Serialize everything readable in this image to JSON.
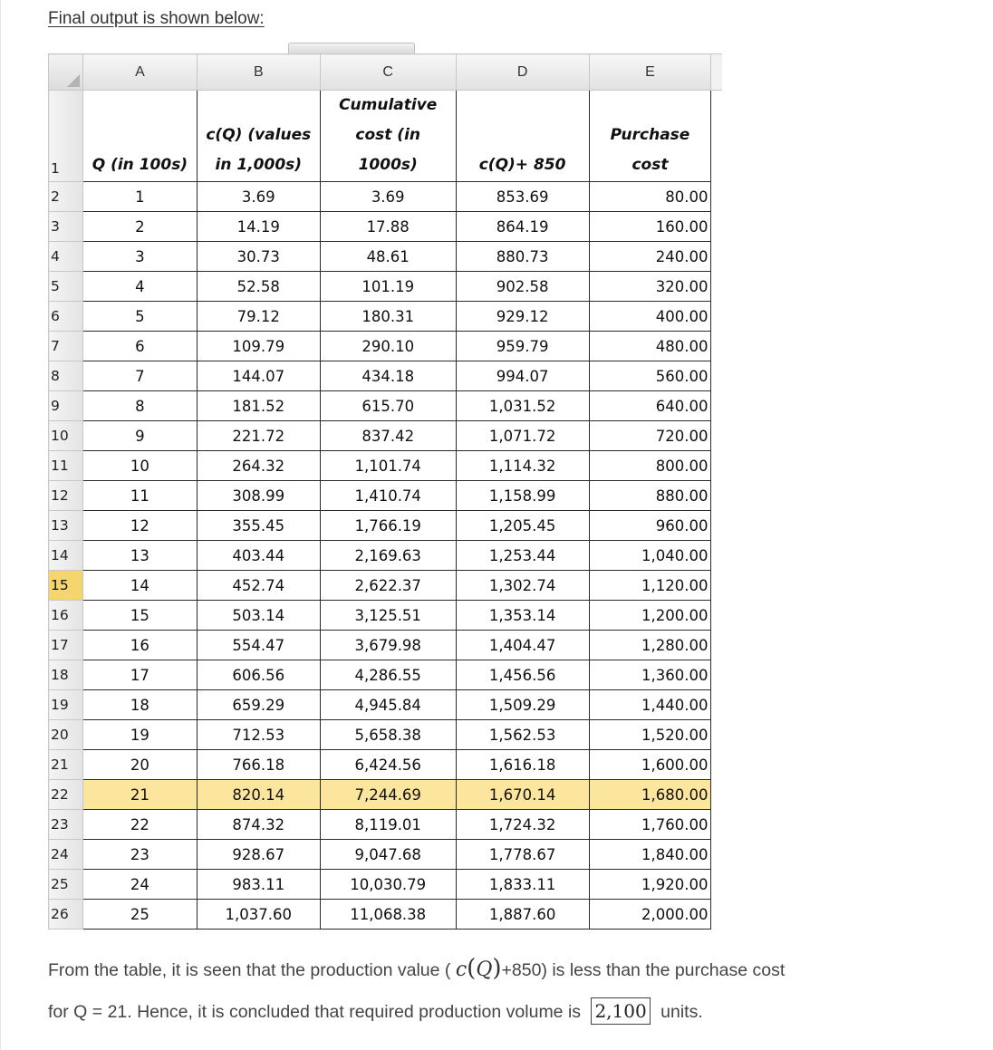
{
  "heading": "Final output is shown below:",
  "columns": [
    "A",
    "B",
    "C",
    "D",
    "E"
  ],
  "header_row": {
    "row_number": "1",
    "cells": [
      [
        "Q (in 100s)"
      ],
      [
        "c(Q) (values",
        "in 1,000s)"
      ],
      [
        "Cumulative",
        "cost (in",
        "1000s)"
      ],
      [
        "c(Q)+ 850"
      ],
      [
        "Purchase",
        "cost"
      ]
    ]
  },
  "rows": [
    {
      "n": "2",
      "q": "1",
      "cq": "3.69",
      "cum": "3.69",
      "plus": "853.69",
      "buy": "80.00"
    },
    {
      "n": "3",
      "q": "2",
      "cq": "14.19",
      "cum": "17.88",
      "plus": "864.19",
      "buy": "160.00"
    },
    {
      "n": "4",
      "q": "3",
      "cq": "30.73",
      "cum": "48.61",
      "plus": "880.73",
      "buy": "240.00"
    },
    {
      "n": "5",
      "q": "4",
      "cq": "52.58",
      "cum": "101.19",
      "plus": "902.58",
      "buy": "320.00"
    },
    {
      "n": "6",
      "q": "5",
      "cq": "79.12",
      "cum": "180.31",
      "plus": "929.12",
      "buy": "400.00"
    },
    {
      "n": "7",
      "q": "6",
      "cq": "109.79",
      "cum": "290.10",
      "plus": "959.79",
      "buy": "480.00"
    },
    {
      "n": "8",
      "q": "7",
      "cq": "144.07",
      "cum": "434.18",
      "plus": "994.07",
      "buy": "560.00"
    },
    {
      "n": "9",
      "q": "8",
      "cq": "181.52",
      "cum": "615.70",
      "plus": "1,031.52",
      "buy": "640.00"
    },
    {
      "n": "10",
      "q": "9",
      "cq": "221.72",
      "cum": "837.42",
      "plus": "1,071.72",
      "buy": "720.00"
    },
    {
      "n": "11",
      "q": "10",
      "cq": "264.32",
      "cum": "1,101.74",
      "plus": "1,114.32",
      "buy": "800.00"
    },
    {
      "n": "12",
      "q": "11",
      "cq": "308.99",
      "cum": "1,410.74",
      "plus": "1,158.99",
      "buy": "880.00"
    },
    {
      "n": "13",
      "q": "12",
      "cq": "355.45",
      "cum": "1,766.19",
      "plus": "1,205.45",
      "buy": "960.00"
    },
    {
      "n": "14",
      "q": "13",
      "cq": "403.44",
      "cum": "2,169.63",
      "plus": "1,253.44",
      "buy": "1,040.00"
    },
    {
      "n": "15",
      "q": "14",
      "cq": "452.74",
      "cum": "2,622.37",
      "plus": "1,302.74",
      "buy": "1,120.00",
      "selected_row": true
    },
    {
      "n": "16",
      "q": "15",
      "cq": "503.14",
      "cum": "3,125.51",
      "plus": "1,353.14",
      "buy": "1,200.00"
    },
    {
      "n": "17",
      "q": "16",
      "cq": "554.47",
      "cum": "3,679.98",
      "plus": "1,404.47",
      "buy": "1,280.00"
    },
    {
      "n": "18",
      "q": "17",
      "cq": "606.56",
      "cum": "4,286.55",
      "plus": "1,456.56",
      "buy": "1,360.00"
    },
    {
      "n": "19",
      "q": "18",
      "cq": "659.29",
      "cum": "4,945.84",
      "plus": "1,509.29",
      "buy": "1,440.00"
    },
    {
      "n": "20",
      "q": "19",
      "cq": "712.53",
      "cum": "5,658.38",
      "plus": "1,562.53",
      "buy": "1,520.00"
    },
    {
      "n": "21",
      "q": "20",
      "cq": "766.18",
      "cum": "6,424.56",
      "plus": "1,616.18",
      "buy": "1,600.00"
    },
    {
      "n": "22",
      "q": "21",
      "cq": "820.14",
      "cum": "7,244.69",
      "plus": "1,670.14",
      "buy": "1,680.00",
      "highlight": true
    },
    {
      "n": "23",
      "q": "22",
      "cq": "874.32",
      "cum": "8,119.01",
      "plus": "1,724.32",
      "buy": "1,760.00"
    },
    {
      "n": "24",
      "q": "23",
      "cq": "928.67",
      "cum": "9,047.68",
      "plus": "1,778.67",
      "buy": "1,840.00"
    },
    {
      "n": "25",
      "q": "24",
      "cq": "983.11",
      "cum": "10,030.79",
      "plus": "1,833.11",
      "buy": "1,920.00"
    },
    {
      "n": "26",
      "q": "25",
      "cq": "1,037.60",
      "cum": "11,068.38",
      "plus": "1,887.60",
      "buy": "2,000.00"
    }
  ],
  "colors": {
    "highlight_row": "#fce59d",
    "selected_row_header": "#f5d66e"
  },
  "conclusion": {
    "part1": "From the table, it is seen that the production value (",
    "math_c": "c",
    "math_q": "Q",
    "part2": "+850) is less than the purchase cost",
    "part3": "for Q = 21. Hence, it is concluded that required production volume is",
    "answer": "2,100",
    "part4": "units."
  }
}
